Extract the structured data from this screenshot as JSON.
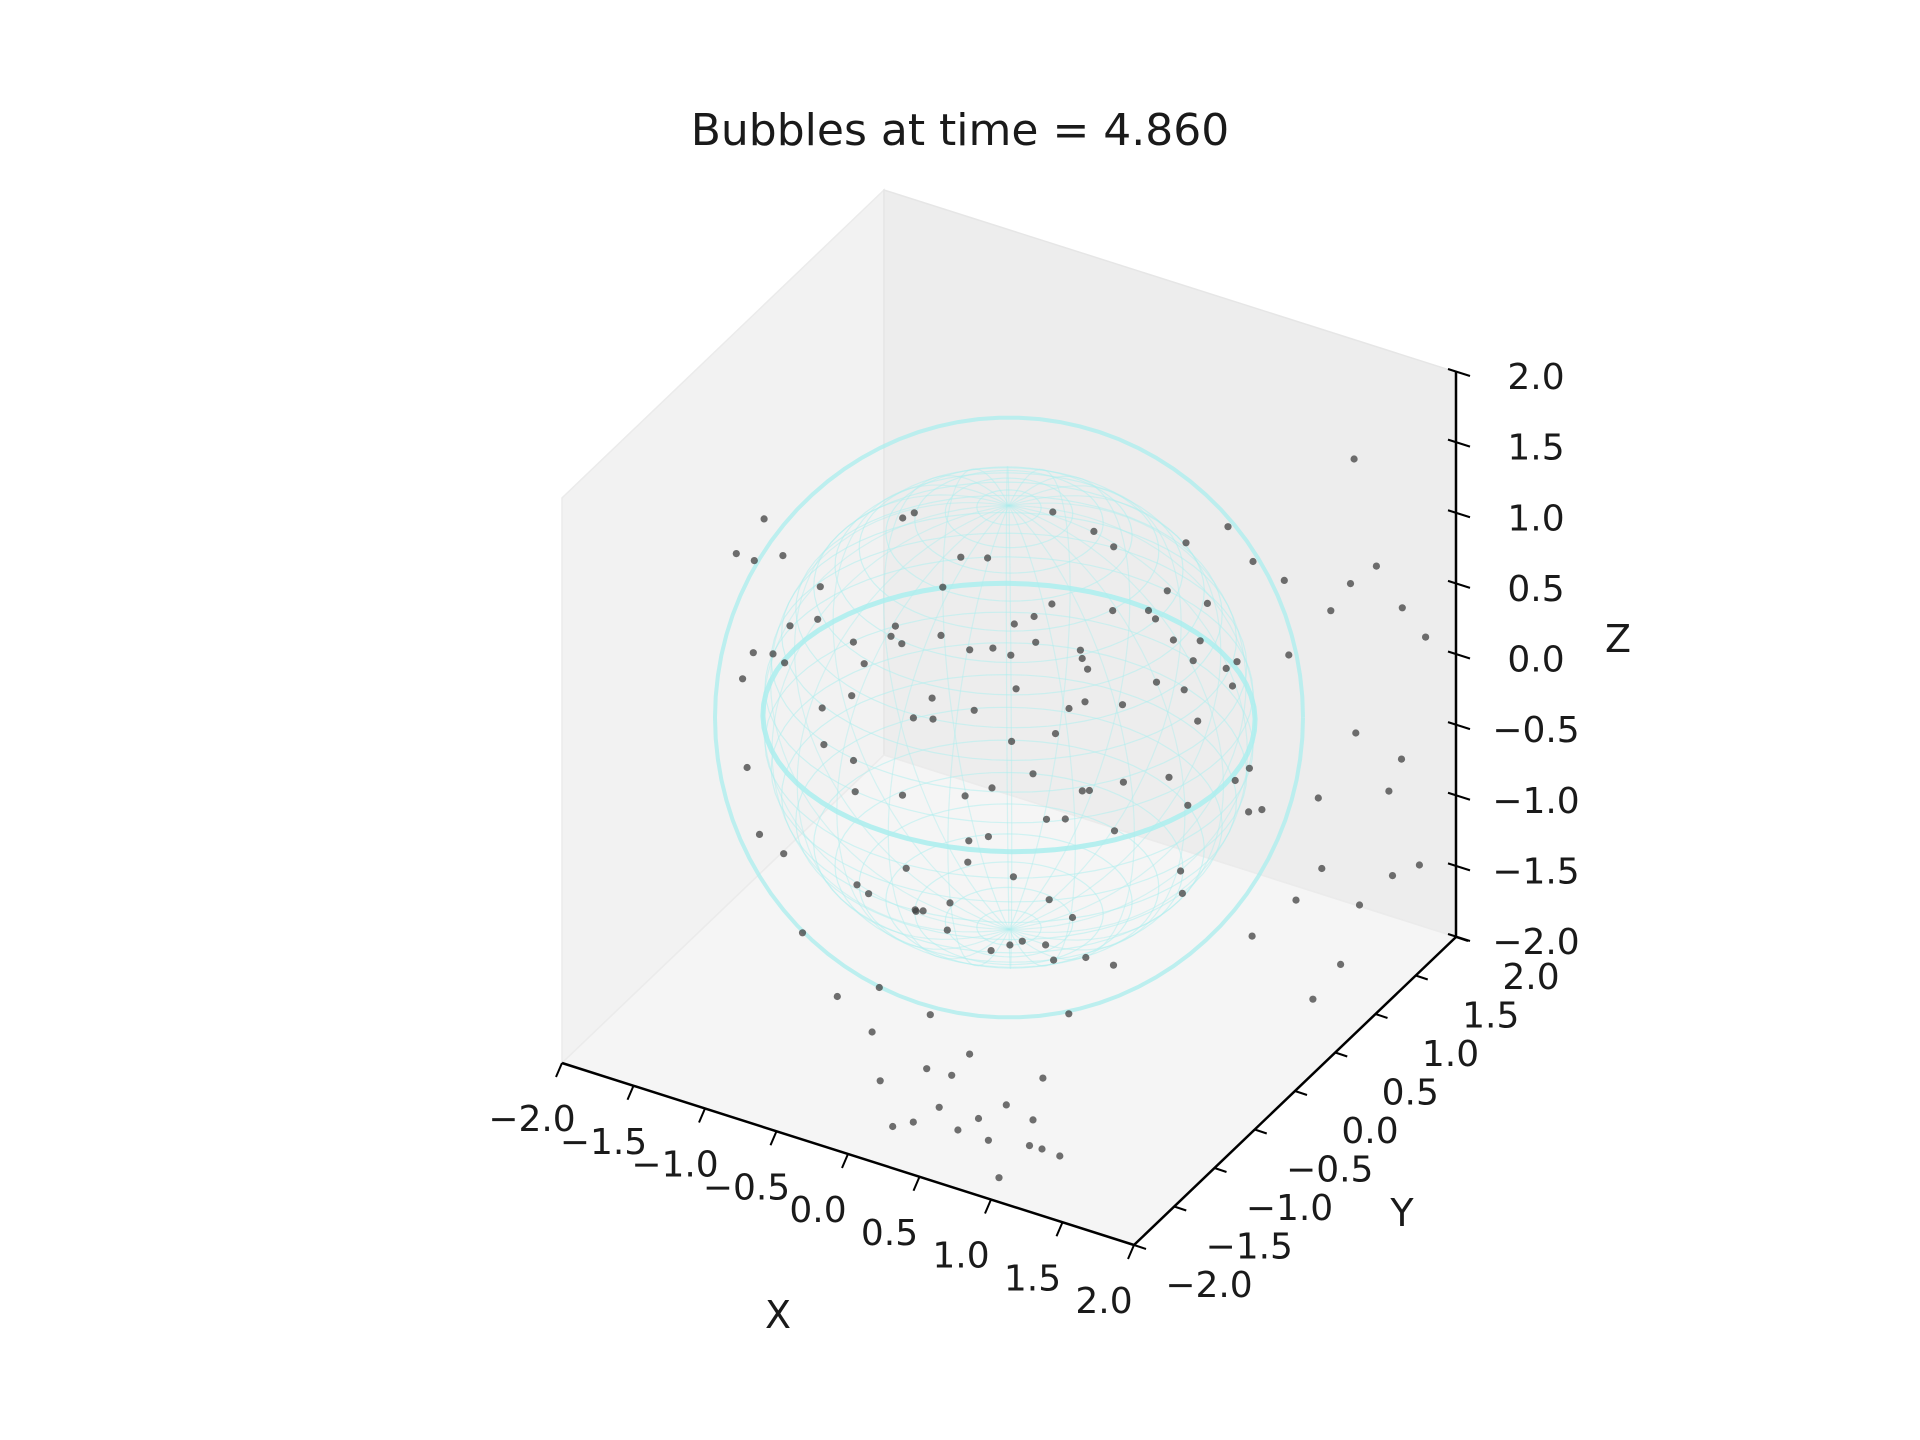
{
  "chart_data": {
    "type": "scatter",
    "title": "Bubbles at time = 4.860",
    "xlabel": "X",
    "ylabel": "Y",
    "zlabel": "Z",
    "xlim": [
      -2.0,
      2.0
    ],
    "ylim": [
      -2.0,
      2.0
    ],
    "zlim": [
      -2.0,
      2.0
    ],
    "x_ticks": [
      "−2.0",
      "−1.5",
      "−1.0",
      "−0.5",
      "0.0",
      "0.5",
      "1.0",
      "1.5",
      "2.0"
    ],
    "y_ticks": [
      "−2.0",
      "−1.5",
      "−1.0",
      "−0.5",
      "0.0",
      "0.5",
      "1.0",
      "1.5",
      "2.0"
    ],
    "z_ticks": [
      "−2.0",
      "−1.5",
      "−1.0",
      "−0.5",
      "0.0",
      "0.5",
      "1.0",
      "1.5",
      "2.0"
    ],
    "sphere": {
      "center": [
        0.0,
        0.0,
        0.0
      ],
      "radius": 1.5,
      "color": "#aeeeee"
    },
    "point_color": "#404040",
    "points": [
      [
        1.2,
        -1.8,
        1.9
      ],
      [
        1.4,
        -1.6,
        1.8
      ],
      [
        1.7,
        -1.2,
        1.9
      ],
      [
        1.9,
        -1.0,
        1.7
      ],
      [
        1.3,
        -1.4,
        1.6
      ],
      [
        1.6,
        -0.8,
        1.5
      ],
      [
        1.8,
        -0.5,
        1.2
      ],
      [
        1.5,
        -0.2,
        1.4
      ],
      [
        1.9,
        0.1,
        1.0
      ],
      [
        1.7,
        0.4,
        1.3
      ],
      [
        1.8,
        0.8,
        0.9
      ],
      [
        1.95,
        1.1,
        1.1
      ],
      [
        1.6,
        1.4,
        0.7
      ],
      [
        1.85,
        1.6,
        0.5
      ],
      [
        1.9,
        1.8,
        0.2
      ],
      [
        1.75,
        1.2,
        -0.2
      ],
      [
        1.9,
        1.5,
        -0.5
      ],
      [
        1.6,
        1.0,
        -0.6
      ],
      [
        1.85,
        0.6,
        -0.8
      ],
      [
        1.7,
        1.7,
        -0.9
      ],
      [
        1.95,
        1.3,
        -1.2
      ],
      [
        1.5,
        0.9,
        -1.3
      ],
      [
        1.8,
        1.9,
        -1.5
      ],
      [
        1.9,
        0.4,
        -1.6
      ],
      [
        1.7,
        1.1,
        -1.8
      ],
      [
        1.55,
        1.6,
        -1.7
      ],
      [
        1.6,
        0.3,
        -0.3
      ],
      [
        1.4,
        1.8,
        1.3
      ],
      [
        1.85,
        -0.3,
        0.4
      ],
      [
        1.7,
        0.0,
        -1.0
      ],
      [
        0.6,
        -1.7,
        -1.8
      ],
      [
        0.8,
        -1.8,
        -1.6
      ],
      [
        1.0,
        -1.9,
        -1.9
      ],
      [
        0.7,
        -1.5,
        -1.95
      ],
      [
        1.1,
        -1.7,
        -1.75
      ],
      [
        0.9,
        -1.3,
        -1.85
      ],
      [
        0.4,
        -1.9,
        -1.7
      ],
      [
        1.2,
        -1.5,
        -1.9
      ],
      [
        0.5,
        -1.6,
        -1.5
      ],
      [
        0.3,
        -1.4,
        -1.9
      ],
      [
        0.2,
        -1.8,
        -1.85
      ],
      [
        1.3,
        -1.9,
        -1.6
      ],
      [
        0.0,
        -1.6,
        -1.7
      ],
      [
        0.1,
        -1.2,
        -1.8
      ],
      [
        0.6,
        -1.1,
        -1.95
      ],
      [
        0.8,
        -1.0,
        -1.75
      ],
      [
        -1.2,
        -0.8,
        0.5
      ],
      [
        -1.0,
        -0.6,
        0.7
      ],
      [
        -0.8,
        -0.9,
        0.3
      ],
      [
        -0.6,
        -0.4,
        0.6
      ],
      [
        -0.4,
        -0.7,
        0.9
      ],
      [
        -0.9,
        -0.2,
        0.2
      ],
      [
        -0.5,
        -0.3,
        0.0
      ],
      [
        -0.2,
        -0.6,
        0.4
      ],
      [
        0.0,
        -0.2,
        0.6
      ],
      [
        0.3,
        -0.5,
        0.2
      ],
      [
        0.5,
        -0.8,
        0.8
      ],
      [
        0.7,
        -0.3,
        0.5
      ],
      [
        0.9,
        -0.6,
        0.1
      ],
      [
        -1.1,
        0.0,
        -0.2
      ],
      [
        -0.7,
        0.3,
        -0.4
      ],
      [
        -0.3,
        0.1,
        -0.1
      ],
      [
        0.1,
        0.4,
        -0.3
      ],
      [
        0.4,
        0.2,
        -0.5
      ],
      [
        0.8,
        0.0,
        -0.2
      ],
      [
        1.0,
        0.4,
        0.3
      ],
      [
        -0.9,
        -1.2,
        -0.6
      ],
      [
        -0.5,
        -1.0,
        -0.8
      ],
      [
        -0.1,
        -1.1,
        -0.5
      ],
      [
        0.3,
        -1.3,
        -0.7
      ],
      [
        0.6,
        -0.9,
        -0.9
      ],
      [
        0.9,
        -1.1,
        -0.4
      ],
      [
        -1.3,
        -0.5,
        1.0
      ],
      [
        -0.8,
        -1.3,
        1.1
      ],
      [
        -0.3,
        -1.4,
        1.2
      ],
      [
        0.2,
        -1.2,
        1.3
      ],
      [
        0.6,
        -1.0,
        1.4
      ],
      [
        1.0,
        -0.8,
        1.1
      ],
      [
        1.2,
        -0.3,
        0.8
      ],
      [
        -1.0,
        0.6,
        0.8
      ],
      [
        -0.6,
        0.8,
        0.5
      ],
      [
        -0.2,
        0.9,
        0.9
      ],
      [
        0.2,
        0.7,
        1.0
      ],
      [
        0.6,
        0.9,
        0.6
      ],
      [
        0.9,
        0.6,
        1.2
      ],
      [
        -0.4,
        0.5,
        -0.9
      ],
      [
        0.0,
        0.7,
        -1.1
      ],
      [
        0.4,
        0.6,
        -1.0
      ],
      [
        0.8,
        0.8,
        -0.8
      ],
      [
        1.1,
        0.2,
        -1.0
      ],
      [
        -0.7,
        -0.5,
        -1.2
      ],
      [
        -0.3,
        -0.2,
        -1.3
      ],
      [
        0.1,
        -0.4,
        -1.4
      ],
      [
        0.5,
        -0.1,
        -1.2
      ],
      [
        0.9,
        -0.3,
        -1.3
      ],
      [
        1.2,
        0.0,
        -0.7
      ],
      [
        -1.2,
        0.2,
        -0.8
      ],
      [
        -1.4,
        -0.3,
        0.1
      ],
      [
        0.2,
        -0.9,
        0.0
      ],
      [
        0.6,
        -0.6,
        -0.2
      ],
      [
        -0.1,
        0.2,
        0.3
      ],
      [
        0.3,
        0.0,
        0.9
      ],
      [
        -0.8,
        0.1,
        1.1
      ],
      [
        0.1,
        -1.5,
        0.3
      ],
      [
        0.5,
        -1.4,
        -0.1
      ],
      [
        0.9,
        -1.3,
        0.6
      ],
      [
        1.1,
        -1.0,
        -0.8
      ],
      [
        -0.2,
        -0.8,
        -1.0
      ],
      [
        0.0,
        -0.5,
        -0.6
      ],
      [
        0.4,
        -0.7,
        -1.1
      ],
      [
        -0.5,
        0.4,
        0.1
      ],
      [
        1.0,
        1.0,
        0.0
      ],
      [
        0.7,
        1.1,
        -0.4
      ],
      [
        1.2,
        0.7,
        0.4
      ],
      [
        -0.9,
        -0.7,
        -0.1
      ],
      [
        -0.4,
        -1.2,
        0.0
      ],
      [
        0.2,
        -0.3,
        -0.9
      ],
      [
        0.5,
        0.4,
        0.7
      ],
      [
        -1.5,
        -0.5,
        0.9
      ],
      [
        -1.6,
        -0.2,
        1.0
      ],
      [
        -1.3,
        -1.0,
        0.4
      ],
      [
        -1.1,
        -1.3,
        0.0
      ],
      [
        -0.9,
        -1.5,
        -0.3
      ],
      [
        -0.6,
        -1.5,
        -0.9
      ],
      [
        -0.3,
        -1.6,
        -1.2
      ],
      [
        0.0,
        -1.7,
        -1.3
      ],
      [
        -1.4,
        -0.9,
        1.2
      ],
      [
        -1.0,
        -1.4,
        0.9
      ],
      [
        0.3,
        -1.6,
        -0.4
      ],
      [
        0.7,
        -1.5,
        0.2
      ],
      [
        1.1,
        -1.4,
        -0.6
      ],
      [
        1.3,
        -0.9,
        1.0
      ],
      [
        -0.7,
        -1.1,
        1.3
      ],
      [
        0.1,
        -1.0,
        1.5
      ],
      [
        -0.2,
        1.1,
        -0.6
      ],
      [
        0.3,
        1.2,
        0.2
      ],
      [
        0.8,
        1.3,
        0.9
      ],
      [
        1.3,
        0.5,
        -0.3
      ],
      [
        1.4,
        -0.5,
        0.3
      ],
      [
        -1.2,
        0.8,
        -0.3
      ],
      [
        -0.9,
        1.0,
        0.3
      ],
      [
        -0.5,
        1.2,
        -0.1
      ],
      [
        0.0,
        1.3,
        0.5
      ],
      [
        0.5,
        1.4,
        -0.2
      ],
      [
        1.0,
        1.2,
        -1.0
      ],
      [
        1.2,
        0.9,
        1.0
      ],
      [
        -0.6,
        -0.1,
        -1.5
      ],
      [
        0.2,
        0.1,
        -1.6
      ],
      [
        0.7,
        -0.5,
        -1.6
      ],
      [
        -0.1,
        -0.8,
        -1.7
      ],
      [
        0.4,
        -1.2,
        -1.6
      ],
      [
        -0.4,
        -0.9,
        -1.55
      ]
    ]
  }
}
